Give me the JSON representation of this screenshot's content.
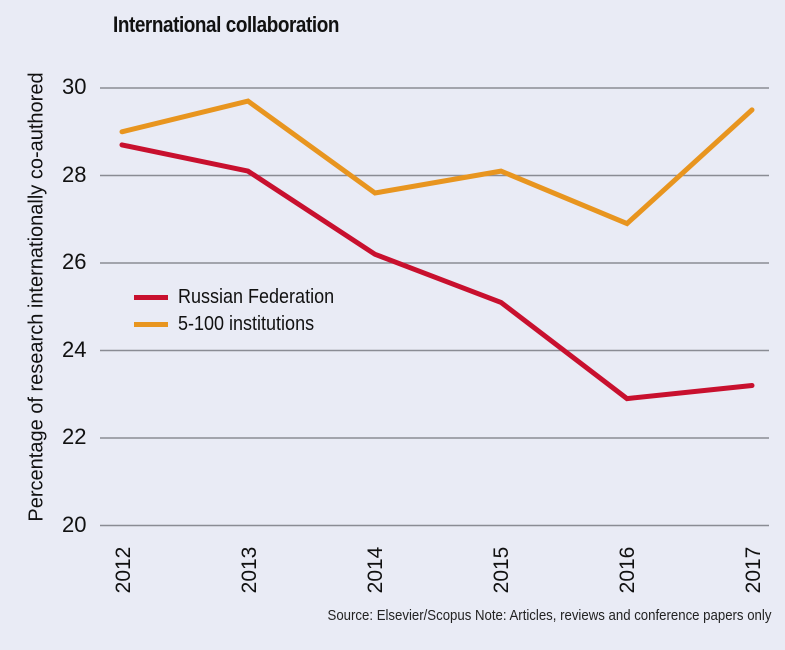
{
  "chart_data": {
    "type": "line",
    "title": "International collaboration",
    "xlabel": "",
    "ylabel": "Percentage of research internationally co-authored",
    "categories": [
      "2012",
      "2013",
      "2014",
      "2015",
      "2016",
      "2017"
    ],
    "series": [
      {
        "name": "Russian Federation",
        "color": "#c8102e",
        "values": [
          28.7,
          28.1,
          26.2,
          25.1,
          22.9,
          23.2
        ]
      },
      {
        "name": "5-100 institutions",
        "color": "#e8951f",
        "values": [
          29.0,
          29.7,
          27.6,
          28.1,
          26.9,
          29.5
        ]
      }
    ],
    "ylim": [
      20,
      30
    ],
    "yticks": [
      "30",
      "28",
      "26",
      "24",
      "22",
      "20"
    ],
    "grid": true,
    "legend_position": "center-left inside plot",
    "source": "Source: Elsevier/Scopus Note: Articles, reviews and conference papers only"
  },
  "colors": {
    "background": "#e9ebf5",
    "gridline": "#8a8c94",
    "russian_federation": "#c8102e",
    "institutions_5_100": "#e8951f"
  }
}
